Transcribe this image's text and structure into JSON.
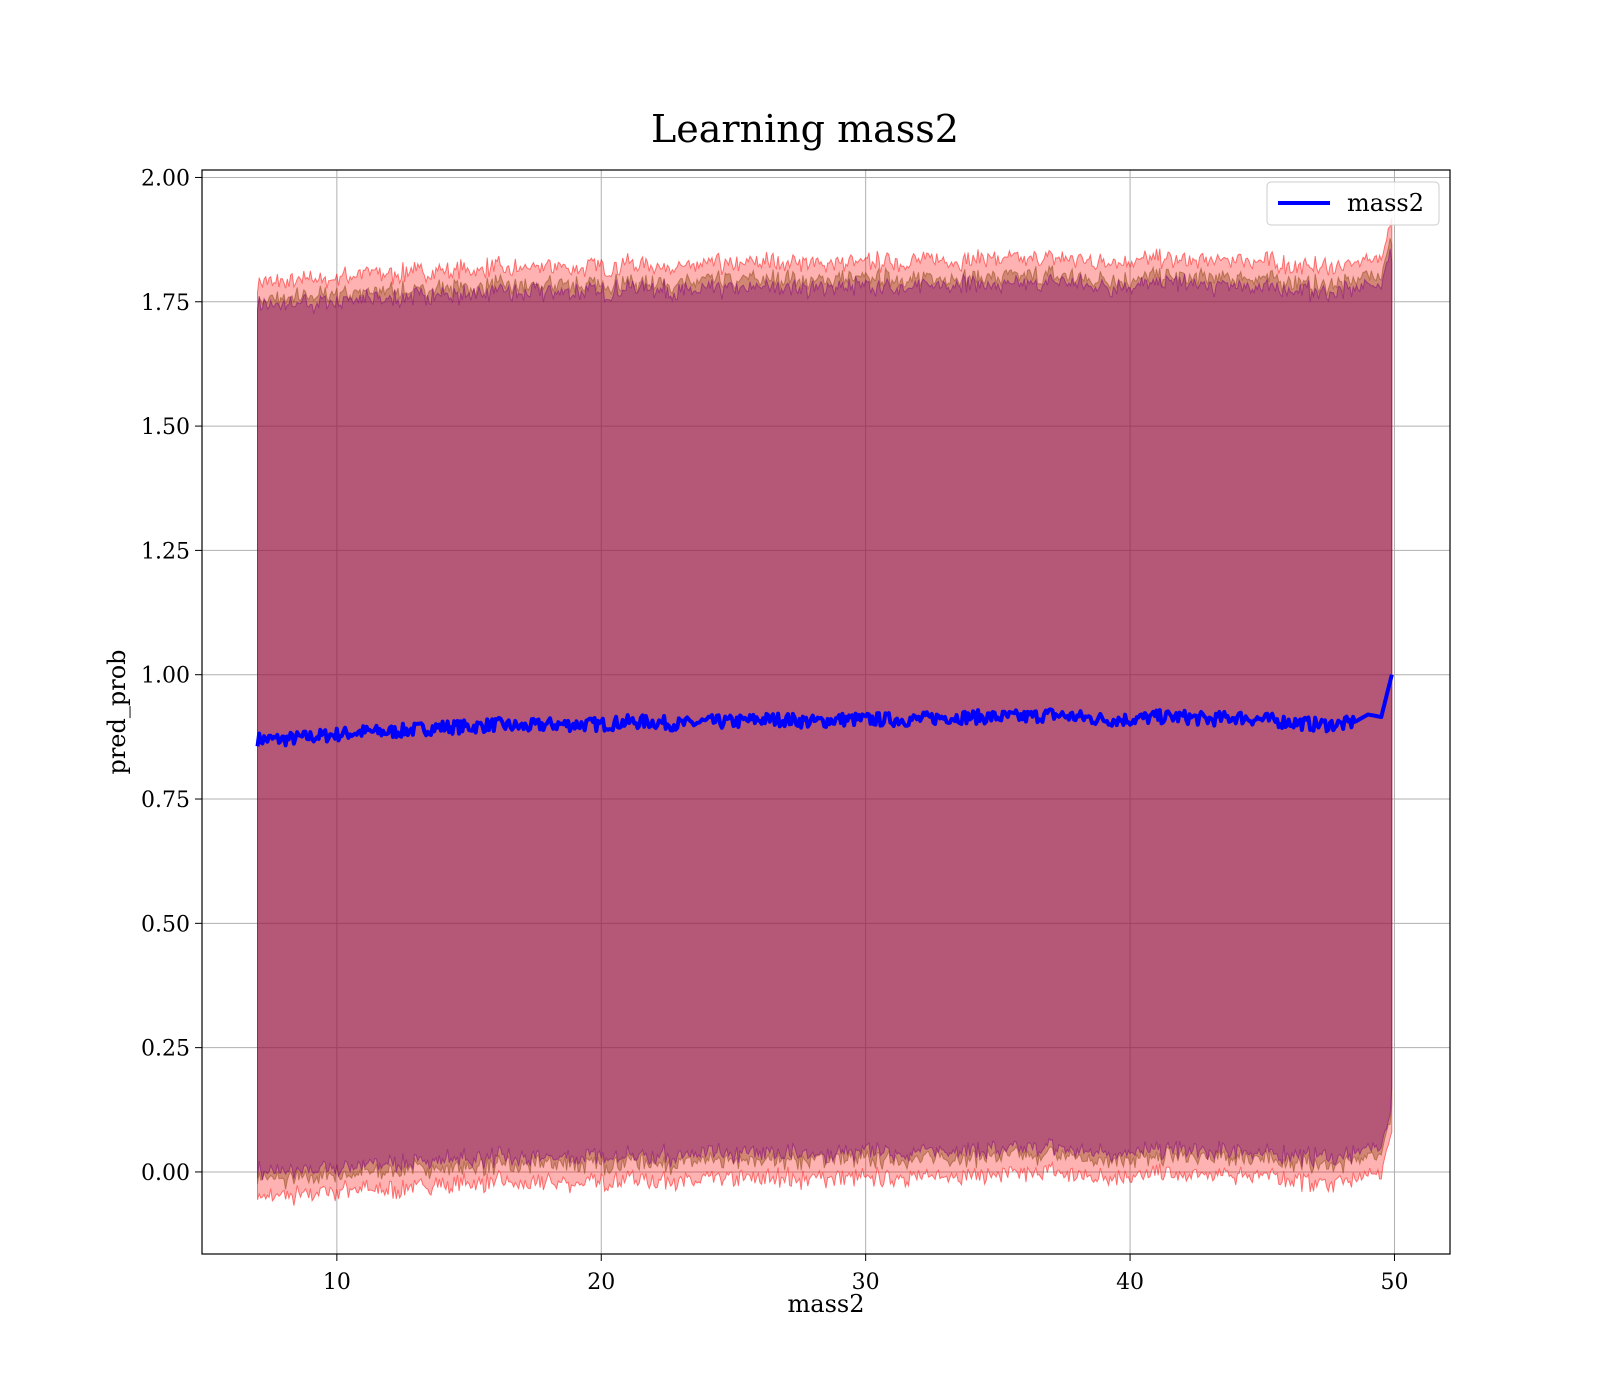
{
  "chart_data": {
    "type": "line",
    "title": "Learning mass2",
    "xlabel": "mass2",
    "ylabel": "pred_prob",
    "xlim": [
      4.9,
      52.1
    ],
    "ylim": [
      -0.165,
      2.015
    ],
    "xticks": [
      10,
      20,
      30,
      40,
      50
    ],
    "xtick_labels": [
      "10",
      "20",
      "30",
      "40",
      "50"
    ],
    "yticks": [
      0.0,
      0.25,
      0.5,
      0.75,
      1.0,
      1.25,
      1.5,
      1.75,
      2.0
    ],
    "ytick_labels": [
      "0.00",
      "0.25",
      "0.50",
      "0.75",
      "1.00",
      "1.25",
      "1.50",
      "1.75",
      "2.00"
    ],
    "grid": true,
    "legend": {
      "position": "top-right",
      "entries": [
        "mass2"
      ]
    },
    "line_color": "#0000ff",
    "bands": [
      {
        "fill_color": "#ff0000",
        "opacity": 0.3,
        "half_width": 0.92
      },
      {
        "fill_color": "#8b4513",
        "opacity": 0.4,
        "half_width": 0.885
      },
      {
        "fill_color": "#800080",
        "opacity": 0.35,
        "half_width": 0.87
      }
    ],
    "series": [
      {
        "name": "mass2",
        "x": [
          7.0,
          8.0,
          9.0,
          10.0,
          11.0,
          12.0,
          13.0,
          14.0,
          15.0,
          16.0,
          17.0,
          18.0,
          19.0,
          20.0,
          21.0,
          22.0,
          23.0,
          24.0,
          25.0,
          26.0,
          27.0,
          28.0,
          29.0,
          30.0,
          31.0,
          32.0,
          33.0,
          34.0,
          35.0,
          36.0,
          37.0,
          38.0,
          39.0,
          40.0,
          41.0,
          42.0,
          43.0,
          44.0,
          45.0,
          46.0,
          47.0,
          48.0,
          48.5,
          49.0,
          49.5,
          49.9
        ],
        "y": [
          0.87,
          0.87,
          0.875,
          0.88,
          0.885,
          0.885,
          0.89,
          0.895,
          0.895,
          0.9,
          0.895,
          0.9,
          0.9,
          0.9,
          0.905,
          0.905,
          0.9,
          0.905,
          0.905,
          0.91,
          0.91,
          0.905,
          0.91,
          0.91,
          0.91,
          0.91,
          0.915,
          0.915,
          0.915,
          0.915,
          0.92,
          0.915,
          0.91,
          0.91,
          0.915,
          0.915,
          0.91,
          0.915,
          0.91,
          0.905,
          0.9,
          0.9,
          0.905,
          0.92,
          0.915,
          1.0
        ]
      }
    ]
  }
}
